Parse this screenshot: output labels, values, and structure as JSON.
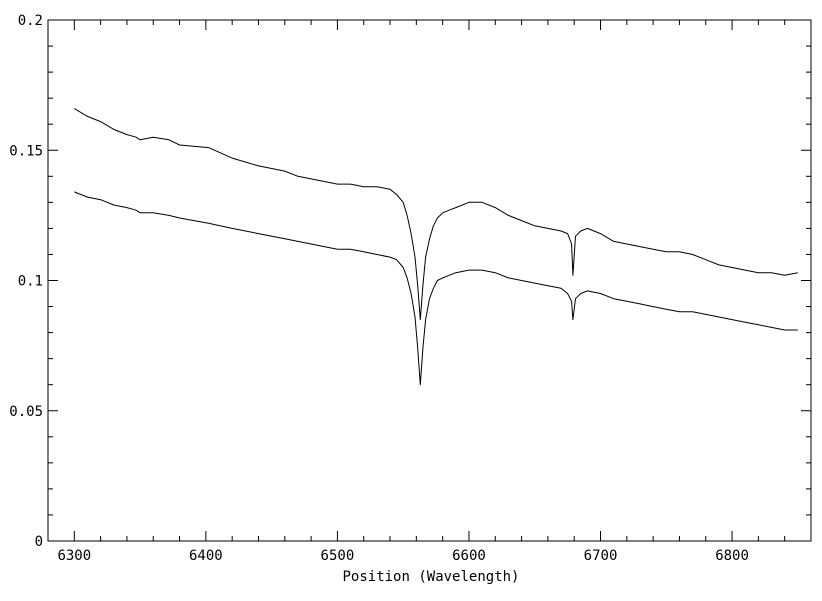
{
  "chart_data": {
    "type": "line",
    "title": "",
    "xlabel": "Position (Wavelength)",
    "ylabel": "",
    "xlim": [
      6280,
      6860
    ],
    "ylim": [
      0,
      0.2
    ],
    "x_ticks": [
      6300,
      6400,
      6500,
      6600,
      6700,
      6800
    ],
    "x_tick_labels": [
      "6300",
      "6400",
      "6500",
      "6600",
      "6700",
      "6800"
    ],
    "y_ticks": [
      0,
      0.05,
      0.1,
      0.15,
      0.2
    ],
    "y_tick_labels": [
      "0",
      "0.05",
      "0.1",
      "0.15",
      "0.2"
    ],
    "grid": false,
    "legend": "none",
    "line_color": "#000000",
    "series": [
      {
        "x": [
          6300,
          6310,
          6320,
          6330,
          6340,
          6347,
          6350,
          6360,
          6372,
          6380,
          6402,
          6420,
          6440,
          6460,
          6470,
          6480,
          6490,
          6500,
          6510,
          6520,
          6530,
          6540,
          6545,
          6550,
          6553,
          6556,
          6559,
          6561,
          6563,
          6565,
          6567,
          6570,
          6573,
          6576,
          6580,
          6585,
          6590,
          6600,
          6610,
          6620,
          6630,
          6640,
          6650,
          6660,
          6670,
          6675,
          6678,
          6679,
          6681,
          6685,
          6690,
          6700,
          6710,
          6720,
          6730,
          6740,
          6750,
          6760,
          6770,
          6780,
          6790,
          6800,
          6810,
          6820,
          6830,
          6840,
          6850
        ],
        "y": [
          0.166,
          0.163,
          0.161,
          0.158,
          0.156,
          0.155,
          0.154,
          0.155,
          0.154,
          0.152,
          0.151,
          0.147,
          0.144,
          0.142,
          0.14,
          0.139,
          0.138,
          0.137,
          0.137,
          0.136,
          0.136,
          0.135,
          0.133,
          0.13,
          0.125,
          0.118,
          0.109,
          0.098,
          0.085,
          0.098,
          0.109,
          0.116,
          0.121,
          0.124,
          0.126,
          0.127,
          0.128,
          0.13,
          0.13,
          0.128,
          0.125,
          0.123,
          0.121,
          0.12,
          0.119,
          0.118,
          0.114,
          0.102,
          0.117,
          0.119,
          0.12,
          0.118,
          0.115,
          0.114,
          0.113,
          0.112,
          0.111,
          0.111,
          0.11,
          0.108,
          0.106,
          0.105,
          0.104,
          0.103,
          0.103,
          0.102,
          0.103
        ]
      },
      {
        "x": [
          6300,
          6310,
          6320,
          6330,
          6340,
          6347,
          6350,
          6360,
          6372,
          6380,
          6402,
          6420,
          6440,
          6460,
          6470,
          6480,
          6490,
          6500,
          6510,
          6520,
          6530,
          6540,
          6545,
          6550,
          6553,
          6556,
          6559,
          6561,
          6563,
          6565,
          6567,
          6570,
          6573,
          6576,
          6580,
          6585,
          6590,
          6600,
          6610,
          6620,
          6630,
          6640,
          6650,
          6660,
          6670,
          6675,
          6678,
          6679,
          6681,
          6685,
          6690,
          6700,
          6710,
          6720,
          6730,
          6740,
          6750,
          6760,
          6770,
          6780,
          6790,
          6800,
          6810,
          6820,
          6830,
          6840,
          6850
        ],
        "y": [
          0.134,
          0.132,
          0.131,
          0.129,
          0.128,
          0.127,
          0.126,
          0.126,
          0.125,
          0.124,
          0.122,
          0.12,
          0.118,
          0.116,
          0.115,
          0.114,
          0.113,
          0.112,
          0.112,
          0.111,
          0.11,
          0.109,
          0.108,
          0.105,
          0.101,
          0.095,
          0.086,
          0.074,
          0.06,
          0.074,
          0.085,
          0.093,
          0.097,
          0.1,
          0.101,
          0.102,
          0.103,
          0.104,
          0.104,
          0.103,
          0.101,
          0.1,
          0.099,
          0.098,
          0.097,
          0.095,
          0.092,
          0.085,
          0.093,
          0.095,
          0.096,
          0.095,
          0.093,
          0.092,
          0.091,
          0.09,
          0.089,
          0.088,
          0.088,
          0.087,
          0.086,
          0.085,
          0.084,
          0.083,
          0.082,
          0.081,
          0.081
        ]
      }
    ]
  }
}
